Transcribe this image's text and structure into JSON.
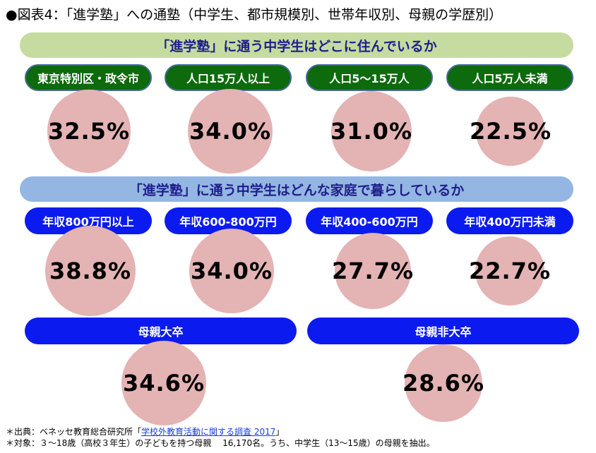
{
  "title": "●図表4：「進学塾」への通塾（中学生、都市規模別、世帯年収別、母親の学歴別）",
  "section1": {
    "heading": "「進学塾」に通う中学生はどこに住んでいるか",
    "color": "#0d6a0d"
  },
  "section2": {
    "heading": "「進学塾」に通う中学生はどんな家庭で暮らしているか",
    "color": "#0b1bf0"
  },
  "chart_data": {
    "type": "bubble",
    "unit": "%",
    "groups": [
      {
        "heading": "「進学塾」に通う中学生はどこに住んでいるか",
        "categories": [
          "東京特別区・政令市",
          "人口15万人以上",
          "人口5～15万人",
          "人口5万人未満"
        ],
        "values": [
          32.5,
          34.0,
          31.0,
          22.5
        ],
        "labels": [
          "32.5%",
          "34.0%",
          "31.0%",
          "22.5%"
        ]
      },
      {
        "heading": "「進学塾」に通う中学生はどんな家庭で暮らしているか",
        "categories": [
          "年収800万円以上",
          "年収600-800万円",
          "年収400-600万円",
          "年収400万円未満"
        ],
        "values": [
          38.8,
          34.0,
          27.7,
          22.7
        ],
        "labels": [
          "38.8%",
          "34.0%",
          "27.7%",
          "22.7%"
        ]
      },
      {
        "heading": "",
        "categories": [
          "母親大卒",
          "母親非大卒"
        ],
        "values": [
          34.6,
          28.6
        ],
        "labels": [
          "34.6%",
          "28.6%"
        ]
      }
    ],
    "bubble_color": "#e4b3b3"
  },
  "footnotes": {
    "source_prefix": "＊出典：ベネッセ教育総合研究所「",
    "source_link": "学校外教育活動に関する調査 2017",
    "source_suffix": "」",
    "subjects": "＊対象：３～18歳（高校３年生）の子どもを持つ母親　 16,170名。うち、中学生（13～15歳）の母親を抽出。"
  }
}
